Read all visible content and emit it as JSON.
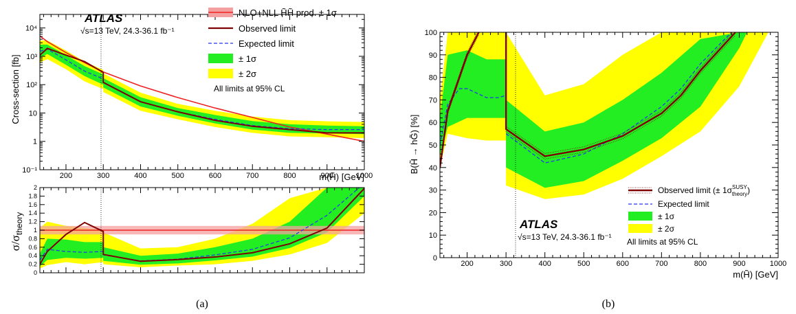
{
  "colors": {
    "obs": "#7f0000",
    "exp": "#2233ee",
    "band1": "#22ee22",
    "band2": "#ffff00",
    "theory": "#ee2222",
    "theory_band": "#f5a0a0"
  },
  "sub_labels": [
    "(a)",
    "(b)"
  ],
  "chart_data": [
    {
      "type": "line",
      "panel": "a-top",
      "atlas": "ATLAS",
      "energy": "√s=13 TeV, 24.3-36.1 fb⁻¹",
      "note": "All limits at 95% CL",
      "ylabel": "Cross-section [fb]",
      "xlabel": "m(H̃) [GeV]",
      "xlim": [
        130,
        1000
      ],
      "ylim": [
        0.1,
        30000
      ],
      "yscale": "log",
      "xticks": [
        "200",
        "300",
        "400",
        "500",
        "600",
        "700",
        "800",
        "900",
        "1000"
      ],
      "yticks": [
        "10⁻¹",
        "1",
        "10",
        "10²",
        "10³",
        "10⁴"
      ],
      "legend": [
        "NLO+NLL H̃H̃ prod. ± 1σ",
        "Observed limit",
        "Expected limit",
        "± 1σ",
        "± 2σ"
      ],
      "x": [
        130,
        150,
        200,
        250,
        300,
        300,
        400,
        500,
        600,
        700,
        800,
        900,
        1000
      ],
      "theory": [
        5200,
        3300,
        1350,
        600,
        280,
        280,
        90,
        35,
        15,
        7,
        3.2,
        1.8,
        1.0
      ],
      "observed": [
        1100,
        1900,
        1100,
        650,
        270,
        120,
        25,
        11,
        5.5,
        3.4,
        2.6,
        2.0,
        2.0
      ],
      "expected": [
        1500,
        1800,
        750,
        300,
        160,
        120,
        25,
        11,
        6,
        3.6,
        2.8,
        2.6,
        2.6
      ],
      "band1": [
        [
          900,
          2600
        ],
        [
          1200,
          2600
        ],
        [
          500,
          1100
        ],
        [
          200,
          450
        ],
        [
          100,
          230
        ],
        [
          80,
          170
        ],
        [
          17,
          36
        ],
        [
          8,
          15
        ],
        [
          4.3,
          8.5
        ],
        [
          2.6,
          5.2
        ],
        [
          2.0,
          4.0
        ],
        [
          1.9,
          3.6
        ],
        [
          1.8,
          3.4
        ]
      ],
      "band2": [
        [
          600,
          3600
        ],
        [
          800,
          3600
        ],
        [
          350,
          1600
        ],
        [
          130,
          650
        ],
        [
          70,
          330
        ],
        [
          55,
          250
        ],
        [
          12,
          52
        ],
        [
          6,
          21
        ],
        [
          3.2,
          12
        ],
        [
          2.0,
          7.5
        ],
        [
          1.5,
          5.6
        ],
        [
          1.4,
          5.1
        ],
        [
          1.3,
          4.8
        ]
      ]
    },
    {
      "type": "line",
      "panel": "a-bottom",
      "ylabel": "σ/σtheory",
      "xlim": [
        130,
        1000
      ],
      "ylim": [
        0,
        2
      ],
      "yticks": [
        "0",
        "0.2",
        "0.4",
        "0.6",
        "0.8",
        "1",
        "1.2",
        "1.4",
        "1.6",
        "1.8",
        "2"
      ],
      "x": [
        130,
        150,
        200,
        250,
        300,
        300,
        400,
        500,
        600,
        700,
        800,
        900,
        1000
      ],
      "theory": [
        1,
        1,
        1,
        1,
        1,
        1,
        1,
        1,
        1,
        1,
        1,
        1,
        1
      ],
      "theory_band": [
        0.9,
        1.1
      ],
      "observed": [
        0.2,
        0.5,
        0.9,
        1.18,
        0.97,
        0.43,
        0.27,
        0.31,
        0.37,
        0.47,
        0.68,
        1.05,
        1.98
      ],
      "expected": [
        0.3,
        0.55,
        0.5,
        0.48,
        0.5,
        0.42,
        0.28,
        0.32,
        0.42,
        0.55,
        0.82,
        1.35,
        2.1
      ],
      "band1": [
        [
          0.15,
          0.45
        ],
        [
          0.3,
          0.8
        ],
        [
          0.35,
          0.78
        ],
        [
          0.33,
          0.72
        ],
        [
          0.35,
          0.72
        ],
        [
          0.28,
          0.6
        ],
        [
          0.19,
          0.4
        ],
        [
          0.22,
          0.45
        ],
        [
          0.29,
          0.6
        ],
        [
          0.38,
          0.8
        ],
        [
          0.58,
          1.2
        ],
        [
          0.95,
          2.0
        ],
        [
          1.8,
          2.0
        ]
      ],
      "band2": [
        [
          0.1,
          1.05
        ],
        [
          0.18,
          1.2
        ],
        [
          0.25,
          1.1
        ],
        [
          0.2,
          1.05
        ],
        [
          0.25,
          1.0
        ],
        [
          0.2,
          0.95
        ],
        [
          0.13,
          0.57
        ],
        [
          0.17,
          0.6
        ],
        [
          0.2,
          0.8
        ],
        [
          0.28,
          1.15
        ],
        [
          0.43,
          1.75
        ],
        [
          0.7,
          2.0
        ],
        [
          1.4,
          2.0
        ]
      ]
    },
    {
      "type": "line",
      "panel": "b",
      "atlas": "ATLAS",
      "energy": "√s=13 TeV, 24.3-36.1 fb⁻¹",
      "note": "All limits at 95% CL",
      "ylabel": "B(H̃ → hG̃) [%]",
      "xlabel": "m(H̃)  [GeV]",
      "xlim": [
        130,
        1000
      ],
      "ylim": [
        0,
        100
      ],
      "xticks": [
        "200",
        "300",
        "400",
        "500",
        "600",
        "700",
        "800",
        "900",
        "1000"
      ],
      "yticks": [
        "0",
        "10",
        "20",
        "30",
        "40",
        "50",
        "60",
        "70",
        "80",
        "90",
        "100"
      ],
      "legend": [
        "Observed limit (± 1σ SUSY theory)",
        "Expected limit",
        "± 1σ",
        "± 2σ"
      ],
      "obs_left": {
        "x": [
          130,
          150,
          200,
          230
        ],
        "y": [
          40,
          65,
          90,
          100
        ]
      },
      "obs_right": {
        "x": [
          300,
          300,
          400,
          500,
          600,
          700,
          750,
          800,
          890
        ],
        "y": [
          100,
          57,
          45,
          48,
          54,
          64,
          72,
          83,
          100
        ]
      },
      "exp_left": {
        "x": [
          130,
          150,
          180,
          200,
          250,
          280,
          300
        ],
        "y": [
          50,
          68,
          75,
          75,
          71,
          71,
          72
        ]
      },
      "exp_right": {
        "x": [
          300,
          400,
          500,
          600,
          700,
          750,
          800,
          880
        ],
        "y": [
          55,
          42,
          46,
          55,
          67,
          75,
          86,
          100
        ]
      },
      "band1_left": {
        "x": [
          130,
          150,
          200,
          250,
          300
        ],
        "lo": [
          45,
          58,
          62,
          62,
          62
        ],
        "hi": [
          62,
          90,
          92,
          88,
          88
        ]
      },
      "band1_right": {
        "x": [
          300,
          400,
          500,
          600,
          700,
          800,
          900,
          920
        ],
        "lo": [
          40,
          31,
          34,
          43,
          53,
          67,
          93,
          100
        ],
        "hi": [
          70,
          56,
          60,
          70,
          82,
          97,
          100,
          100
        ]
      },
      "band2_left": {
        "x": [
          130,
          150,
          200,
          250,
          300
        ],
        "lo": [
          40,
          55,
          53,
          52,
          52
        ],
        "hi": [
          70,
          100,
          100,
          100,
          100
        ]
      },
      "band2_right": {
        "x": [
          300,
          400,
          500,
          600,
          700,
          800,
          900,
          975
        ],
        "lo": [
          32,
          26,
          28,
          35,
          45,
          56,
          76,
          100
        ],
        "hi": [
          100,
          72,
          77,
          90,
          100,
          100,
          100,
          100
        ]
      }
    }
  ]
}
